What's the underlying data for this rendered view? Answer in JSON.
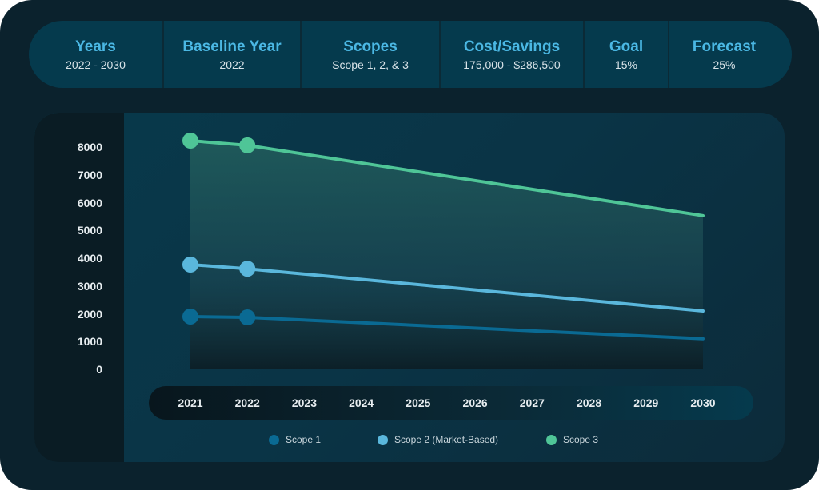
{
  "kpis": [
    {
      "title": "Years",
      "value": "2022 - 2030"
    },
    {
      "title": "Baseline Year",
      "value": "2022"
    },
    {
      "title": "Scopes",
      "value": "Scope 1, 2, & 3"
    },
    {
      "title": "Cost/Savings",
      "value": "175,000 - $286,500"
    },
    {
      "title": "Goal",
      "value": "15%"
    },
    {
      "title": "Forecast",
      "value": "25%"
    }
  ],
  "chart_data": {
    "type": "area",
    "categories": [
      "2021",
      "2022",
      "2023",
      "2024",
      "2025",
      "2026",
      "2027",
      "2028",
      "2029",
      "2030"
    ],
    "x": [
      2021,
      2022,
      2030
    ],
    "ylim": [
      0,
      8000
    ],
    "yticks": [
      "0",
      "1000",
      "2000",
      "3000",
      "4000",
      "5000",
      "6000",
      "7000",
      "8000"
    ],
    "legend_position": "bottom",
    "grid": false,
    "series": [
      {
        "name": "Scope 1",
        "color": "#0a6a93",
        "values": [
          1900,
          1870,
          1100
        ],
        "markers": [
          2021,
          2022
        ]
      },
      {
        "name": "Scope 2 (Market-Based)",
        "color": "#5ab7dc",
        "values": [
          3770,
          3620,
          2100
        ],
        "markers": [
          2021,
          2022
        ]
      },
      {
        "name": "Scope 3",
        "color": "#4fc597",
        "values": [
          8230,
          8060,
          5530
        ],
        "markers": [
          2021,
          2022
        ]
      }
    ]
  }
}
